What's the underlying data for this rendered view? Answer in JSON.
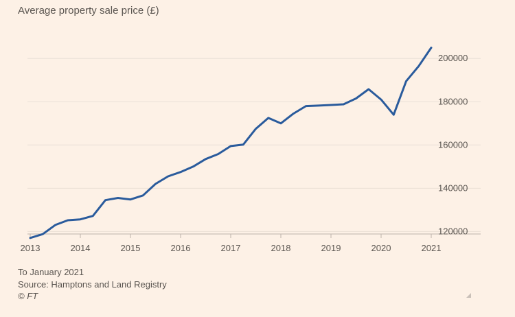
{
  "chart_data": {
    "type": "line",
    "title": "Average property sale price (£)",
    "xlabel": "",
    "ylabel": "",
    "xlim": [
      2013,
      2021
    ],
    "ylim": [
      116000,
      208000
    ],
    "x_ticks": [
      2013,
      2014,
      2015,
      2016,
      2017,
      2018,
      2019,
      2020,
      2021
    ],
    "x_tick_labels": [
      "2013",
      "2014",
      "2015",
      "2016",
      "2017",
      "2018",
      "2019",
      "2020",
      "2021"
    ],
    "y_ticks": [
      120000,
      140000,
      160000,
      180000,
      200000
    ],
    "y_tick_labels": [
      "120000",
      "140000",
      "160000",
      "180000",
      "200000"
    ],
    "grid": true,
    "series": [
      {
        "name": "Average property sale price",
        "color": "#2a5b9c",
        "x": [
          2013.0,
          2013.25,
          2013.5,
          2013.75,
          2014.0,
          2014.25,
          2014.5,
          2014.75,
          2015.0,
          2015.25,
          2015.5,
          2015.75,
          2016.0,
          2016.25,
          2016.5,
          2016.75,
          2017.0,
          2017.25,
          2017.5,
          2017.75,
          2018.0,
          2018.25,
          2018.5,
          2018.75,
          2019.0,
          2019.25,
          2019.5,
          2019.75,
          2020.0,
          2020.25,
          2020.5,
          2020.75,
          2021.0
        ],
        "y": [
          117000,
          118800,
          123000,
          125200,
          125600,
          127200,
          134500,
          135500,
          134800,
          136700,
          142000,
          145500,
          147500,
          150000,
          153500,
          155800,
          159500,
          160200,
          167500,
          172500,
          170000,
          174500,
          178000,
          178200,
          178500,
          178800,
          181500,
          185800,
          181000,
          174000,
          189500,
          196500,
          205000
        ]
      }
    ]
  },
  "notes": {
    "period": "To January 2021",
    "source": "Source: Hamptons and Land Registry",
    "credit": "© FT"
  },
  "colors": {
    "background": "#fdf1e6",
    "line": "#2a5b9c",
    "grid": "#e9dfd5",
    "text": "#5a5550"
  }
}
